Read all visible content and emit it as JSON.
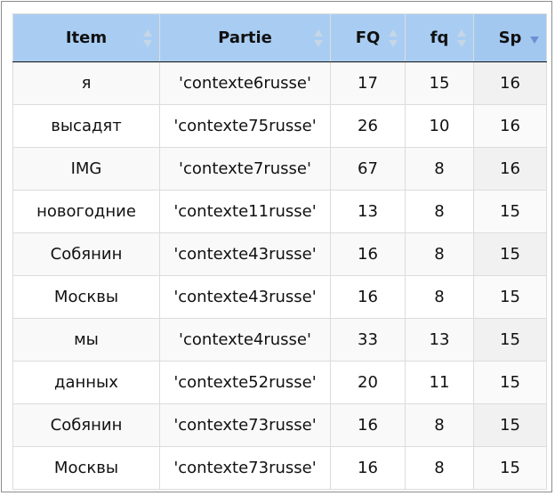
{
  "table": {
    "columns": [
      {
        "key": "item",
        "label": "Item",
        "sort": "both-icon"
      },
      {
        "key": "partie",
        "label": "Partie",
        "sort": "both-icon"
      },
      {
        "key": "FQ",
        "label": "FQ",
        "sort": "both-icon"
      },
      {
        "key": "fq",
        "label": "fq",
        "sort": "both-icon"
      },
      {
        "key": "Sp",
        "label": "Sp",
        "sort": "descending-icon"
      }
    ],
    "rows": [
      {
        "item": "я",
        "partie": "'contexte6russe'",
        "FQ": "17",
        "fq": "15",
        "Sp": "16"
      },
      {
        "item": "высадят",
        "partie": "'contexte75russe'",
        "FQ": "26",
        "fq": "10",
        "Sp": "16"
      },
      {
        "item": "IMG",
        "partie": "'contexte7russe'",
        "FQ": "67",
        "fq": "8",
        "Sp": "16"
      },
      {
        "item": "новогодние",
        "partie": "'contexte11russe'",
        "FQ": "13",
        "fq": "8",
        "Sp": "15"
      },
      {
        "item": "Собянин",
        "partie": "'contexte43russe'",
        "FQ": "16",
        "fq": "8",
        "Sp": "15"
      },
      {
        "item": "Москвы",
        "partie": "'contexte43russe'",
        "FQ": "16",
        "fq": "8",
        "Sp": "15"
      },
      {
        "item": "мы",
        "partie": "'contexte4russe'",
        "FQ": "33",
        "fq": "13",
        "Sp": "15"
      },
      {
        "item": "данных",
        "partie": "'contexte52russe'",
        "FQ": "20",
        "fq": "11",
        "Sp": "15"
      },
      {
        "item": "Собянин",
        "partie": "'contexte73russe'",
        "FQ": "16",
        "fq": "8",
        "Sp": "15"
      },
      {
        "item": "Москвы",
        "partie": "'contexte73russe'",
        "FQ": "16",
        "fq": "8",
        "Sp": "15"
      }
    ]
  },
  "colors": {
    "header_bg": "#a9cdf2",
    "sort_inactive": "#c5d6e6",
    "sort_active": "#6e8fd4",
    "row_odd": "#f9f9f9",
    "row_even": "#ffffff",
    "sorted_column": "#f1f1f1"
  }
}
